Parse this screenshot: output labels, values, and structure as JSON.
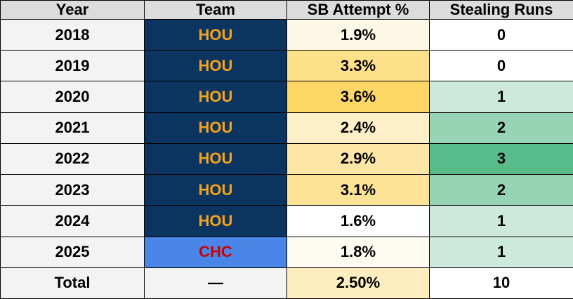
{
  "table": {
    "header": [
      "Year",
      "Team",
      "SB Attempt %",
      "Stealing Runs"
    ],
    "rows": [
      [
        "2018",
        "HOU",
        "1.9%",
        "0"
      ],
      [
        "2019",
        "HOU",
        "3.3%",
        "0"
      ],
      [
        "2020",
        "HOU",
        "3.6%",
        "1"
      ],
      [
        "2021",
        "HOU",
        "2.4%",
        "2"
      ],
      [
        "2022",
        "HOU",
        "2.9%",
        "3"
      ],
      [
        "2023",
        "HOU",
        "3.1%",
        "2"
      ],
      [
        "2024",
        "HOU",
        "1.6%",
        "1"
      ],
      [
        "2025",
        "CHC",
        "1.8%",
        "1"
      ],
      [
        "Total",
        "—",
        "2.50%",
        "10"
      ]
    ]
  }
}
